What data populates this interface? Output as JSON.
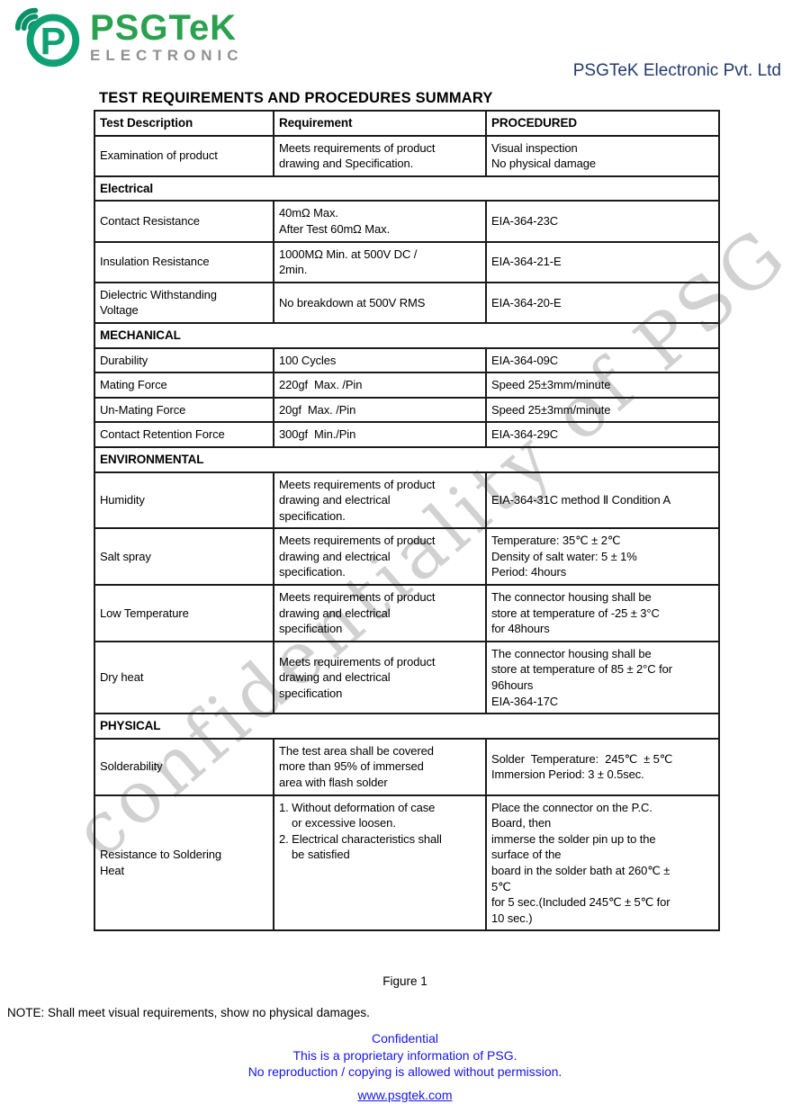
{
  "header": {
    "logo": {
      "brand": "PSGTeK",
      "sub": "electronic"
    },
    "company": "PSGTeK Electronic Pvt. Ltd"
  },
  "title": "TEST REQUIREMENTS AND PROCEDURES SUMMARY",
  "watermark": "confidentiality of PSG",
  "table": {
    "columns": [
      "Test Description",
      "Requirement",
      "PROCEDURED"
    ],
    "rows": [
      {
        "type": "data",
        "cells": [
          "Examination of product",
          "Meets requirements of product\ndrawing and Specification.",
          "Visual inspection\nNo physical damage"
        ]
      },
      {
        "type": "section",
        "label": "Electrical"
      },
      {
        "type": "data",
        "cells": [
          "Contact Resistance",
          "40mΩ Max.\nAfter Test 60mΩ Max.",
          "EIA-364-23C"
        ]
      },
      {
        "type": "data",
        "cells": [
          "Insulation Resistance",
          "1000MΩ Min. at 500V DC /\n2min.",
          "EIA-364-21-E"
        ]
      },
      {
        "type": "data",
        "cells": [
          "Dielectric Withstanding\nVoltage",
          "No breakdown at 500V RMS",
          "EIA-364-20-E"
        ]
      },
      {
        "type": "section",
        "label": "MECHANICAL"
      },
      {
        "type": "data",
        "cells": [
          "Durability",
          "100 Cycles",
          "EIA-364-09C"
        ]
      },
      {
        "type": "data",
        "cells": [
          "Mating Force",
          "220gf  Max. /Pin",
          "Speed 25±3mm/minute"
        ]
      },
      {
        "type": "data",
        "cells": [
          "Un-Mating Force",
          "20gf  Max. /Pin",
          "Speed 25±3mm/minute"
        ]
      },
      {
        "type": "data",
        "cells": [
          "Contact Retention Force",
          "300gf  Min./Pin",
          "EIA-364-29C"
        ]
      },
      {
        "type": "section",
        "label": "ENVIRONMENTAL"
      },
      {
        "type": "data",
        "cells": [
          "Humidity",
          "Meets requirements of product\ndrawing and electrical\nspecification.",
          "EIA-364-31C method Ⅱ Condition A"
        ]
      },
      {
        "type": "data",
        "cells": [
          "Salt spray",
          "Meets requirements of product\ndrawing and electrical\nspecification.",
          "Temperature: 35℃ ± 2℃\nDensity of salt water: 5 ± 1%\nPeriod: 4hours"
        ]
      },
      {
        "type": "data",
        "cells": [
          "Low Temperature",
          "Meets requirements of product\ndrawing and electrical\nspecification",
          "The connector housing shall be\nstore at temperature of -25 ± 3°C\nfor 48hours"
        ]
      },
      {
        "type": "data",
        "cells": [
          "Dry heat",
          "Meets requirements of product\ndrawing and electrical\nspecification",
          "The connector housing shall be\nstore at temperature of 85 ± 2°C for\n96hours\nEIA-364-17C"
        ]
      },
      {
        "type": "section",
        "label": "PHYSICAL"
      },
      {
        "type": "data",
        "cells": [
          "Solderability",
          "The test area shall be covered\nmore than 95% of immersed\narea with flash solder",
          "Solder  Temperature:  245℃  ± 5℃\nImmersion Period: 3 ± 0.5sec."
        ]
      },
      {
        "type": "data",
        "cells": [
          "Resistance to Soldering\nHeat",
          "1. Without deformation of case\n    or excessive loosen.\n2. Electrical characteristics shall\n    be satisfied",
          "Place the connector on the P.C.\nBoard, then\nimmerse the solder pin up to the\nsurface of the\nboard in the solder bath at 260℃ ±\n5℃\nfor 5 sec.(Included 245℃ ± 5℃ for\n10 sec.)"
        ]
      }
    ]
  },
  "caption": "Figure 1",
  "note": "NOTE: Shall meet visual requirements, show no physical damages.",
  "footer": {
    "lines": [
      "Confidential",
      "This is a proprietary information of PSG.",
      "No reproduction / copying is allowed without permission."
    ],
    "link": "www.psgtek.com"
  },
  "colors": {
    "logo_green": "#0fa173",
    "brand_green": "#2aa14e",
    "logo_gray": "#909090",
    "company_navy": "#233a6d",
    "footer_blue": "#1515e8",
    "watermark_gray": "#acacac",
    "table_border": "#1a1a1a"
  }
}
